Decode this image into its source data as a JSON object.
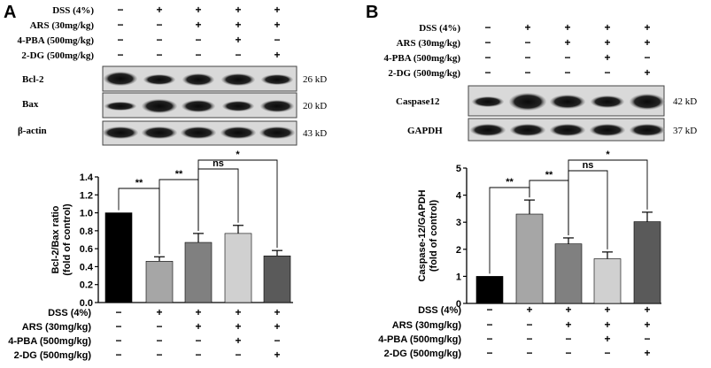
{
  "panel_a": {
    "letter": "A",
    "treatment_labels": [
      "DSS (4%)",
      "ARS (30mg/kg)",
      "4-PBA (500mg/kg)",
      "2-DG (500mg/kg)"
    ],
    "treatment_signs": [
      [
        "−",
        "+",
        "+",
        "+",
        "+"
      ],
      [
        "−",
        "−",
        "+",
        "+",
        "+"
      ],
      [
        "−",
        "−",
        "−",
        "+",
        "−"
      ],
      [
        "−",
        "−",
        "−",
        "−",
        "+"
      ]
    ],
    "blots": [
      {
        "label": "Bcl-2",
        "kd": "26 kD"
      },
      {
        "label": "Bax",
        "kd": "20 kD"
      },
      {
        "label": "β-actin",
        "kd": "43 kD"
      }
    ]
  },
  "panel_b": {
    "letter": "B",
    "treatment_labels": [
      "DSS (4%)",
      "ARS (30mg/kg)",
      "4-PBA (500mg/kg)",
      "2-DG (500mg/kg)"
    ],
    "treatment_signs": [
      [
        "−",
        "+",
        "+",
        "+",
        "+"
      ],
      [
        "−",
        "−",
        "+",
        "+",
        "+"
      ],
      [
        "−",
        "−",
        "−",
        "+",
        "−"
      ],
      [
        "−",
        "−",
        "−",
        "−",
        "+"
      ]
    ],
    "blots": [
      {
        "label": "Caspase12",
        "kd": "42 kD"
      },
      {
        "label": "GAPDH",
        "kd": "37 kD"
      }
    ]
  },
  "chart_data": [
    {
      "type": "bar",
      "ylabel": "Bcl-2/Bax ratio\n(fold of control)",
      "ylim": [
        0,
        1.4
      ],
      "yticks": [
        "0.0",
        "0.2",
        "0.4",
        "0.6",
        "0.8",
        "1.0",
        "1.2",
        "1.4"
      ],
      "tick_values": [
        0,
        0.2,
        0.4,
        0.6,
        0.8,
        1.0,
        1.2,
        1.4
      ],
      "values": [
        1.0,
        0.46,
        0.67,
        0.77,
        0.52
      ],
      "errors": [
        0,
        0.05,
        0.1,
        0.09,
        0.06
      ],
      "colors": [
        "#000000",
        "#a6a6a6",
        "#808080",
        "#d0d0d0",
        "#5a5a5a"
      ],
      "significance": [
        {
          "from": 0,
          "to": 1,
          "label": "**"
        },
        {
          "from": 1,
          "to": 2,
          "label": "**"
        },
        {
          "from": 2,
          "to": 3,
          "label": "ns"
        },
        {
          "from": 2,
          "to": 4,
          "label": "*"
        }
      ],
      "treatment_labels": [
        "DSS (4%)",
        "ARS (30mg/kg)",
        "4-PBA (500mg/kg)",
        "2-DG (500mg/kg)"
      ],
      "treatment_signs": [
        [
          "−",
          "+",
          "+",
          "+",
          "+"
        ],
        [
          "−",
          "−",
          "+",
          "+",
          "+"
        ],
        [
          "−",
          "−",
          "−",
          "+",
          "−"
        ],
        [
          "−",
          "−",
          "−",
          "−",
          "+"
        ]
      ]
    },
    {
      "type": "bar",
      "ylabel": "Caspase-12/GAPDH\n(fold of control)",
      "ylim": [
        0,
        5
      ],
      "yticks": [
        "0",
        "1",
        "2",
        "3",
        "4",
        "5"
      ],
      "tick_values": [
        0,
        1,
        2,
        3,
        4,
        5
      ],
      "values": [
        1.0,
        3.3,
        2.2,
        1.65,
        3.02
      ],
      "errors": [
        0,
        0.52,
        0.22,
        0.25,
        0.35
      ],
      "colors": [
        "#000000",
        "#a6a6a6",
        "#808080",
        "#d0d0d0",
        "#5a5a5a"
      ],
      "significance": [
        {
          "from": 0,
          "to": 1,
          "label": "**"
        },
        {
          "from": 1,
          "to": 2,
          "label": "**"
        },
        {
          "from": 2,
          "to": 3,
          "label": "ns"
        },
        {
          "from": 2,
          "to": 4,
          "label": "*"
        }
      ],
      "treatment_labels": [
        "DSS (4%)",
        "ARS (30mg/kg)",
        "4-PBA (500mg/kg)",
        "2-DG (500mg/kg)"
      ],
      "treatment_signs": [
        [
          "−",
          "+",
          "+",
          "+",
          "+"
        ],
        [
          "−",
          "−",
          "+",
          "+",
          "+"
        ],
        [
          "−",
          "−",
          "−",
          "+",
          "−"
        ],
        [
          "−",
          "−",
          "−",
          "−",
          "+"
        ]
      ]
    }
  ]
}
